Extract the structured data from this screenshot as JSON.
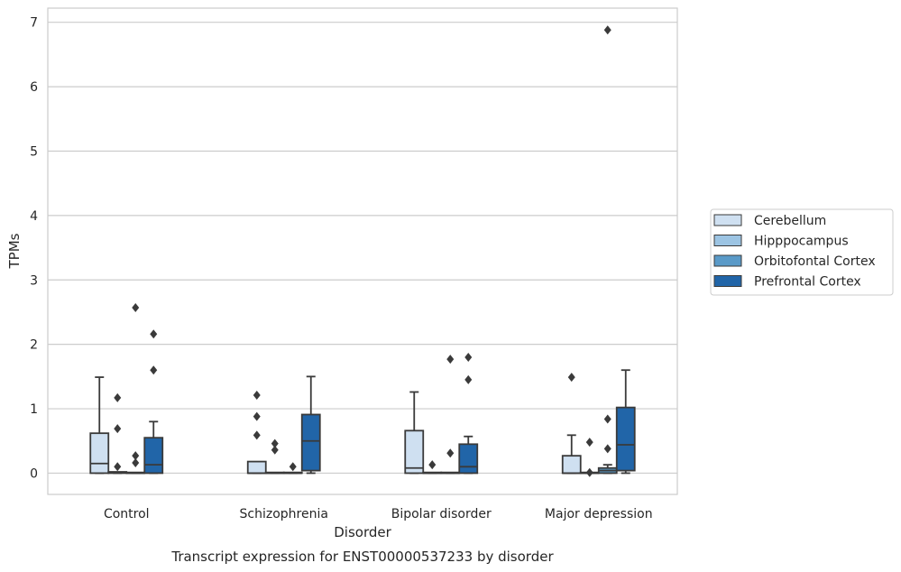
{
  "chart_data": {
    "type": "box",
    "caption": "Transcript expression for ENST00000537233 by disorder",
    "xlabel": "Disorder",
    "ylabel": "TPMs",
    "ylim": [
      -0.33,
      7.22
    ],
    "yticks": [
      0,
      1,
      2,
      3,
      4,
      5,
      6,
      7
    ],
    "grid": "horizontal",
    "legend_position": "right",
    "categories": [
      "Control",
      "Schizophrenia",
      "Bipolar disorder",
      "Major depression"
    ],
    "series": [
      {
        "name": "Cerebellum",
        "color": "#cfe0f1",
        "boxes": [
          {
            "whislo": 0,
            "q1": 0,
            "med": 0.15,
            "q3": 0.62,
            "whishi": 1.49,
            "fliers": []
          },
          {
            "whislo": 0,
            "q1": 0,
            "med": 0,
            "q3": 0.18,
            "whishi": 0.18,
            "fliers": [
              0.59,
              0.88,
              1.21
            ]
          },
          {
            "whislo": 0,
            "q1": 0,
            "med": 0.08,
            "q3": 0.66,
            "whishi": 1.26,
            "fliers": []
          },
          {
            "whislo": 0,
            "q1": 0,
            "med": 0,
            "q3": 0.27,
            "whishi": 0.59,
            "fliers": [
              1.49
            ]
          }
        ]
      },
      {
        "name": "Hipppocampus",
        "color": "#9cc4e3",
        "boxes": [
          {
            "whislo": 0,
            "q1": 0,
            "med": 0.01,
            "q3": 0.02,
            "whishi": 0.02,
            "fliers": [
              0.1,
              0.69,
              1.17
            ]
          },
          {
            "whislo": 0,
            "q1": 0,
            "med": 0,
            "q3": 0,
            "whishi": 0,
            "fliers": [
              0.36,
              0.46
            ]
          },
          {
            "whislo": 0,
            "q1": 0,
            "med": 0,
            "q3": 0,
            "whishi": 0,
            "fliers": [
              0.13
            ]
          },
          {
            "whislo": 0,
            "q1": 0,
            "med": 0,
            "q3": 0,
            "whishi": 0,
            "fliers": [
              0.01,
              0.48
            ]
          }
        ]
      },
      {
        "name": "Orbitofontal Cortex",
        "color": "#5a9ac8",
        "boxes": [
          {
            "whislo": 0,
            "q1": 0,
            "med": 0,
            "q3": 0,
            "whishi": 0,
            "fliers": [
              0.16,
              0.27,
              2.57
            ]
          },
          {
            "whislo": 0,
            "q1": 0,
            "med": 0,
            "q3": 0,
            "whishi": 0,
            "fliers": [
              0.1
            ]
          },
          {
            "whislo": 0,
            "q1": 0,
            "med": 0,
            "q3": 0,
            "whishi": 0,
            "fliers": [
              0.31,
              1.77
            ]
          },
          {
            "whislo": 0,
            "q1": 0,
            "med": 0.04,
            "q3": 0.08,
            "whishi": 0.13,
            "fliers": [
              0.38,
              0.84,
              6.88
            ]
          }
        ]
      },
      {
        "name": "Prefrontal Cortex",
        "color": "#2165a8",
        "boxes": [
          {
            "whislo": 0,
            "q1": 0,
            "med": 0.13,
            "q3": 0.55,
            "whishi": 0.8,
            "fliers": [
              1.6,
              2.16
            ]
          },
          {
            "whislo": 0,
            "q1": 0.04,
            "med": 0.5,
            "q3": 0.91,
            "whishi": 1.5,
            "fliers": []
          },
          {
            "whislo": 0,
            "q1": 0,
            "med": 0.1,
            "q3": 0.45,
            "whishi": 0.57,
            "fliers": [
              1.45,
              1.8
            ]
          },
          {
            "whislo": 0,
            "q1": 0.04,
            "med": 0.44,
            "q3": 1.02,
            "whishi": 1.6,
            "fliers": []
          }
        ]
      }
    ]
  }
}
